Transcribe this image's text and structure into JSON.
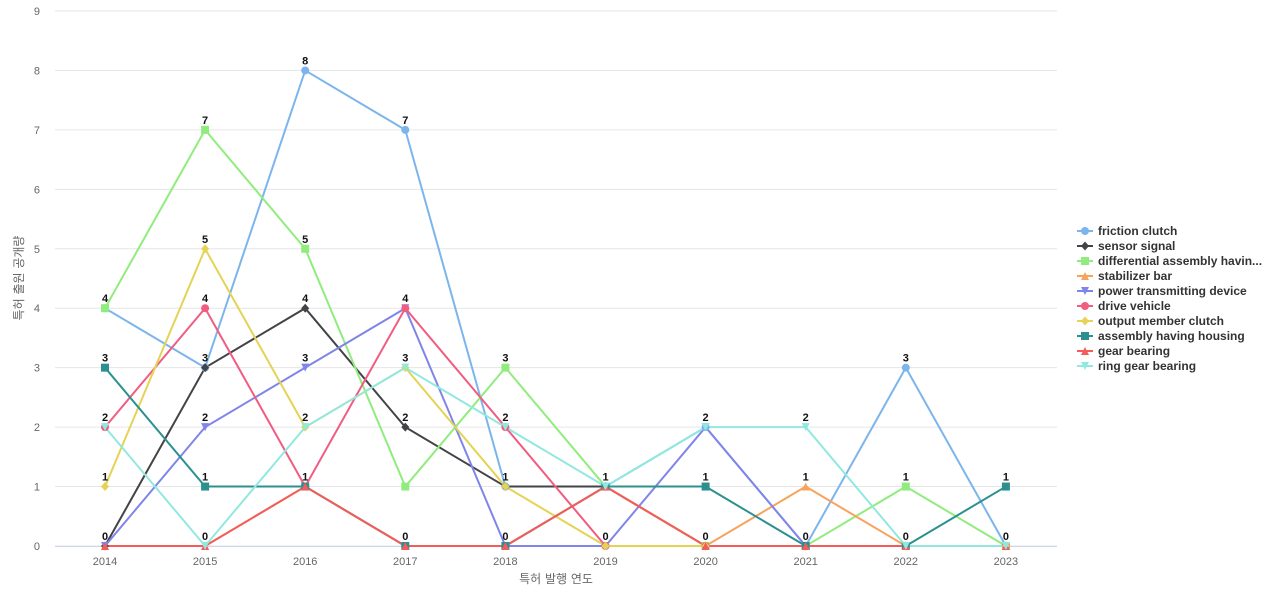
{
  "chart_data": {
    "type": "line",
    "title": "",
    "xlabel": "특허 발행 연도",
    "ylabel": "특허 출원 공개량",
    "x": [
      "2014",
      "2015",
      "2016",
      "2017",
      "2018",
      "2019",
      "2020",
      "2021",
      "2022",
      "2023"
    ],
    "ylim": [
      0,
      9
    ],
    "yticks": [
      "0",
      "1",
      "2",
      "3",
      "4",
      "5",
      "6",
      "7",
      "8",
      "9"
    ],
    "grid": true,
    "legend_position": "right",
    "series": [
      {
        "name": "friction clutch",
        "color": "#7cb5ec",
        "marker": "circle",
        "values": [
          4,
          3,
          8,
          7,
          1,
          1,
          2,
          0,
          3,
          0
        ]
      },
      {
        "name": "sensor signal",
        "color": "#434348",
        "marker": "diamond",
        "values": [
          0,
          3,
          4,
          2,
          1,
          1,
          0,
          0,
          0,
          0
        ]
      },
      {
        "name": "differential assembly havin...",
        "color": "#90ed7d",
        "marker": "square",
        "values": [
          4,
          7,
          5,
          1,
          3,
          1,
          0,
          0,
          1,
          0
        ]
      },
      {
        "name": "stabilizer bar",
        "color": "#f7a35c",
        "marker": "triangle",
        "values": [
          0,
          0,
          1,
          0,
          0,
          1,
          0,
          1,
          0,
          0
        ]
      },
      {
        "name": "power transmitting device",
        "color": "#8085e9",
        "marker": "triangle-down",
        "values": [
          0,
          2,
          3,
          4,
          0,
          0,
          2,
          0,
          0,
          0
        ]
      },
      {
        "name": "drive vehicle",
        "color": "#f15c80",
        "marker": "circle",
        "values": [
          2,
          4,
          1,
          4,
          2,
          0,
          0,
          0,
          0,
          0
        ]
      },
      {
        "name": "output member clutch",
        "color": "#e4d354",
        "marker": "diamond",
        "values": [
          1,
          5,
          2,
          3,
          1,
          0,
          0,
          0,
          0,
          0
        ]
      },
      {
        "name": "assembly having housing",
        "color": "#2b908f",
        "marker": "square",
        "values": [
          3,
          1,
          1,
          0,
          0,
          1,
          1,
          0,
          0,
          1
        ]
      },
      {
        "name": "gear bearing",
        "color": "#f45b5b",
        "marker": "triangle",
        "values": [
          0,
          0,
          1,
          0,
          0,
          1,
          0,
          0,
          0,
          0
        ]
      },
      {
        "name": "ring gear bearing",
        "color": "#91e8e1",
        "marker": "triangle-down",
        "values": [
          2,
          0,
          2,
          3,
          2,
          1,
          2,
          2,
          0,
          0
        ]
      }
    ],
    "point_labels": {
      "values": [
        [
          "4",
          "7",
          "8",
          "7",
          "3",
          "1",
          "2",
          "2",
          "3",
          "1"
        ],
        [
          "3",
          "5",
          "5",
          "4",
          "2",
          "",
          "1",
          "1",
          "1",
          "0"
        ],
        [
          "2",
          "4",
          "4",
          "3",
          "1",
          "0",
          "0",
          "0",
          "0",
          ""
        ],
        [
          "1",
          "3",
          "3",
          "2",
          "0",
          "",
          "",
          "",
          "",
          ""
        ],
        [
          "0",
          "2",
          "2",
          "",
          "",
          "",
          "",
          "",
          "",
          ""
        ],
        [
          "",
          "1",
          "1",
          "0",
          "",
          "",
          "",
          "",
          "",
          ""
        ],
        [
          "",
          "0",
          "",
          "",
          "",
          "",
          "",
          "",
          "",
          ""
        ]
      ]
    }
  }
}
